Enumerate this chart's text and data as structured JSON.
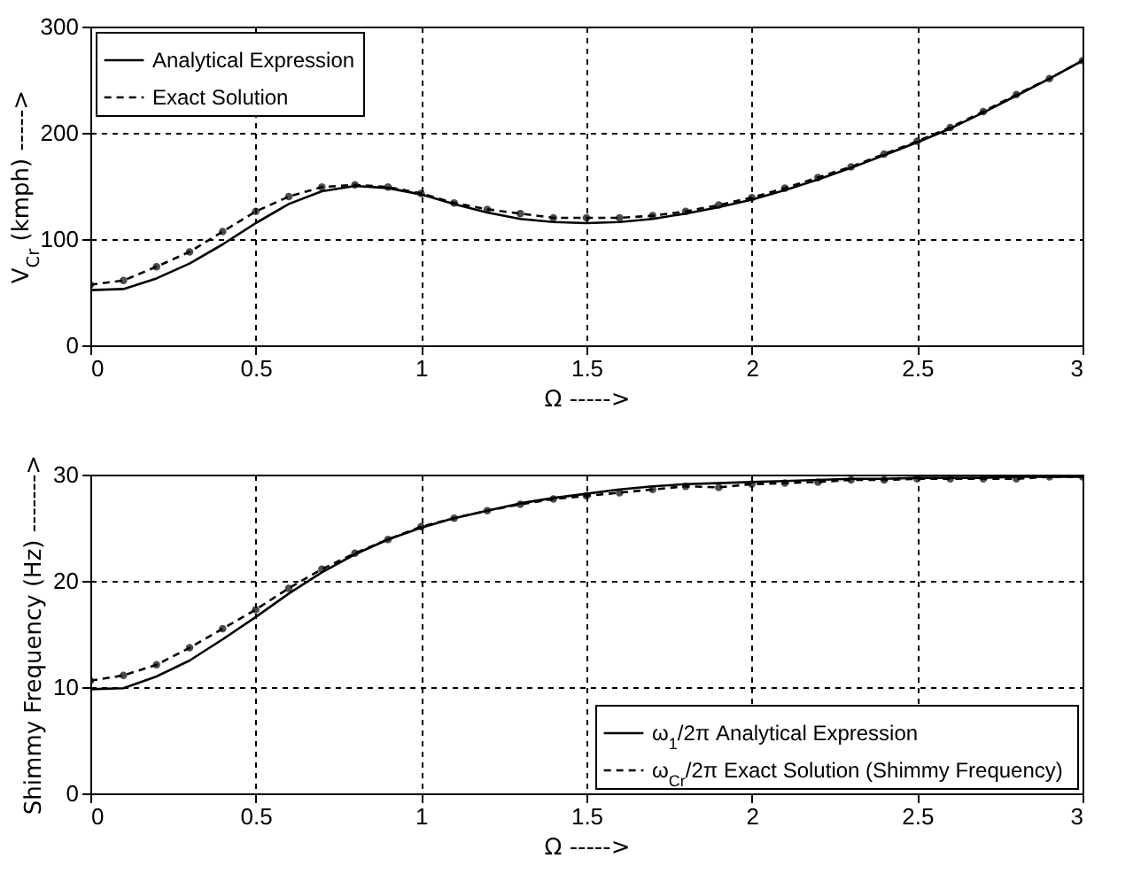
{
  "chart_data": [
    {
      "type": "line",
      "xlabel": "Ω ----->",
      "ylabel": "V$_{Cr}$ (kmph) ----->",
      "x": [
        0,
        0.1,
        0.2,
        0.3,
        0.4,
        0.5,
        0.6,
        0.7,
        0.8,
        0.9,
        1.0,
        1.1,
        1.2,
        1.3,
        1.4,
        1.5,
        1.6,
        1.7,
        1.8,
        1.9,
        2.0,
        2.1,
        2.2,
        2.3,
        2.4,
        2.5,
        2.6,
        2.7,
        2.8,
        2.9,
        3.0
      ],
      "series": [
        {
          "name": "Analytical Expression",
          "color": "#000000",
          "line_style": "solid",
          "marker": "none",
          "values": [
            52,
            53,
            63,
            77,
            95,
            115,
            133,
            145,
            150,
            148,
            142,
            133,
            125,
            119,
            116,
            115,
            116,
            119,
            124,
            130,
            137,
            146,
            156,
            167,
            179,
            191,
            204,
            219,
            235,
            251,
            268
          ]
        },
        {
          "name": "Exact Solution",
          "color": "#000000",
          "line_style": "dashed",
          "marker": "circle",
          "values": [
            57,
            61,
            74,
            88,
            107,
            126,
            140,
            149,
            151,
            149,
            143,
            134,
            128,
            124,
            120,
            120,
            120,
            122,
            126,
            132,
            139,
            148,
            158,
            168,
            180,
            192,
            205,
            220,
            236,
            251,
            268
          ]
        }
      ],
      "xlim": [
        0,
        3
      ],
      "xticks": [
        0,
        0.5,
        1,
        1.5,
        2,
        2.5,
        3
      ],
      "ylim": [
        0,
        300
      ],
      "yticks": [
        0,
        100,
        200,
        300
      ],
      "grid": true,
      "legend": "top left"
    },
    {
      "type": "line",
      "xlabel": "Ω ----->",
      "ylabel": "Shimmy Frequency (Hz) ------->",
      "x": [
        0,
        0.1,
        0.2,
        0.3,
        0.4,
        0.5,
        0.6,
        0.7,
        0.8,
        0.9,
        1.0,
        1.1,
        1.2,
        1.3,
        1.4,
        1.5,
        1.6,
        1.7,
        1.8,
        1.9,
        2.0,
        2.1,
        2.2,
        2.3,
        2.4,
        2.5,
        2.6,
        2.7,
        2.8,
        2.9,
        3.0
      ],
      "series": [
        {
          "name": "ω$_{1}$/2π Analytical Expression",
          "color": "#000000",
          "line_style": "solid",
          "marker": "none",
          "values": [
            9.8,
            9.9,
            11.0,
            12.5,
            14.5,
            16.6,
            18.8,
            20.8,
            22.5,
            23.9,
            25.0,
            25.9,
            26.6,
            27.3,
            27.8,
            28.2,
            28.6,
            28.9,
            29.1,
            29.2,
            29.3,
            29.4,
            29.5,
            29.6,
            29.6,
            29.7,
            29.7,
            29.7,
            29.8,
            29.8,
            29.8
          ]
        },
        {
          "name": "ω$_{Cr}$/2π Exact Solution (Shimmy Frequency)",
          "color": "#000000",
          "line_style": "dashed",
          "marker": "circle",
          "values": [
            10.6,
            11.1,
            12.1,
            13.7,
            15.5,
            17.3,
            19.3,
            21.1,
            22.6,
            23.9,
            25.1,
            25.9,
            26.6,
            27.2,
            27.7,
            28.0,
            28.3,
            28.6,
            28.9,
            28.8,
            29.1,
            29.2,
            29.3,
            29.5,
            29.5,
            29.6,
            29.6,
            29.6,
            29.6,
            29.8,
            29.8
          ]
        }
      ],
      "xlim": [
        0,
        3
      ],
      "xticks": [
        0,
        0.5,
        1,
        1.5,
        2,
        2.5,
        3
      ],
      "ylim": [
        0,
        30
      ],
      "yticks": [
        0,
        10,
        20,
        30
      ],
      "grid": true,
      "legend": "bottom right"
    }
  ]
}
